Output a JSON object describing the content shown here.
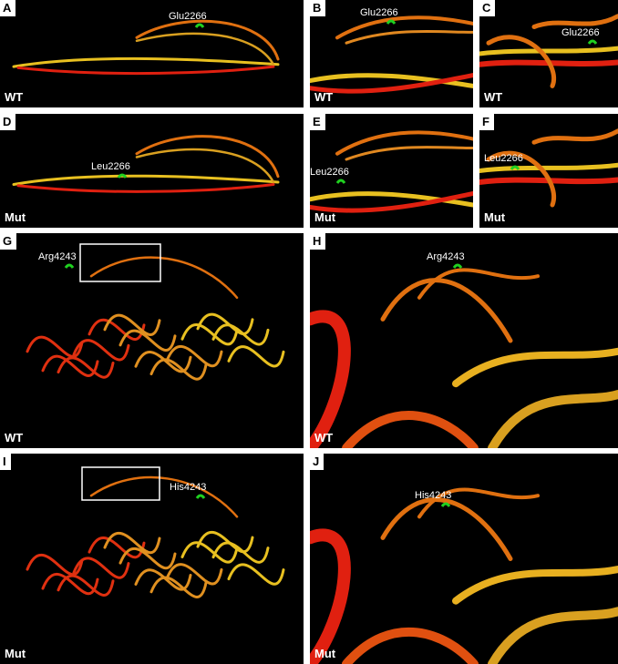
{
  "panels": [
    {
      "letter": "A",
      "condition": "WT",
      "residue": "Glu2266"
    },
    {
      "letter": "B",
      "condition": "WT",
      "residue": "Glu2266"
    },
    {
      "letter": "C",
      "condition": "WT",
      "residue": "Glu2266"
    },
    {
      "letter": "D",
      "condition": "Mut",
      "residue": "Leu2266"
    },
    {
      "letter": "E",
      "condition": "Mut",
      "residue": "Leu2266"
    },
    {
      "letter": "F",
      "condition": "Mut",
      "residue": "Leu2266"
    },
    {
      "letter": "G",
      "condition": "WT",
      "residue": "Arg4243"
    },
    {
      "letter": "H",
      "condition": "WT",
      "residue": "Arg4243"
    },
    {
      "letter": "I",
      "condition": "Mut",
      "residue": "His4243"
    },
    {
      "letter": "J",
      "condition": "Mut",
      "residue": "His4243"
    }
  ]
}
